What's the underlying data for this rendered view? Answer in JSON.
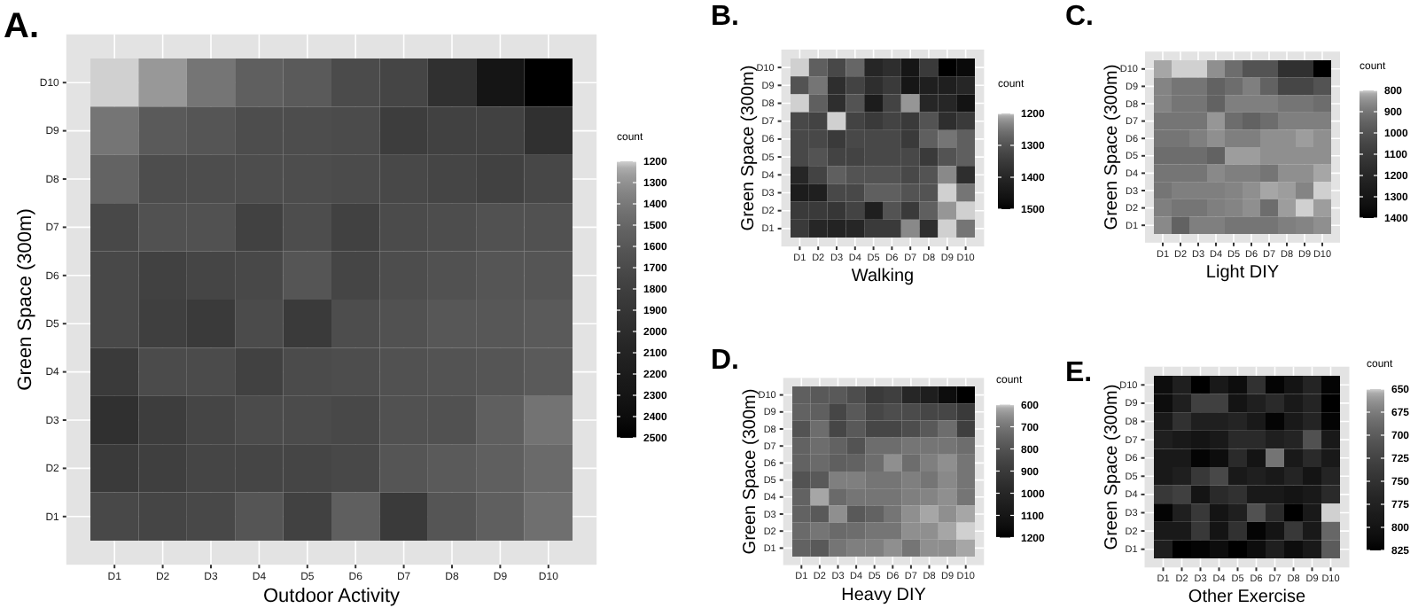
{
  "chart_data": [
    {
      "type": "heatmap",
      "title": "A.",
      "xlabel": "Outdoor Activity",
      "ylabel": "Green Space (300m)",
      "clabel": "count",
      "grid": true,
      "categories": [
        "D1",
        "D2",
        "D3",
        "D4",
        "D5",
        "D6",
        "D7",
        "D8",
        "D9",
        "D10"
      ],
      "y_categories": [
        "D10",
        "D9",
        "D8",
        "D7",
        "D6",
        "D5",
        "D4",
        "D3",
        "D2",
        "D1"
      ],
      "cells": [
        [
          1200,
          1280,
          1420,
          1550,
          1580,
          1700,
          1750,
          1950,
          2300,
          2500
        ],
        [
          1420,
          1580,
          1620,
          1680,
          1680,
          1700,
          1820,
          1780,
          1780,
          1950
        ],
        [
          1520,
          1680,
          1680,
          1680,
          1680,
          1700,
          1720,
          1750,
          1780,
          1730
        ],
        [
          1720,
          1650,
          1650,
          1780,
          1680,
          1780,
          1700,
          1680,
          1650,
          1650
        ],
        [
          1720,
          1780,
          1750,
          1720,
          1620,
          1750,
          1680,
          1650,
          1620,
          1620
        ],
        [
          1720,
          1800,
          1850,
          1700,
          1850,
          1680,
          1650,
          1600,
          1600,
          1580
        ],
        [
          1850,
          1700,
          1700,
          1780,
          1700,
          1680,
          1650,
          1630,
          1620,
          1580
        ],
        [
          1950,
          1820,
          1750,
          1700,
          1700,
          1720,
          1650,
          1650,
          1550,
          1430
        ],
        [
          1850,
          1800,
          1750,
          1750,
          1750,
          1720,
          1620,
          1580,
          1550,
          1480
        ],
        [
          1720,
          1750,
          1720,
          1620,
          1780,
          1550,
          1850,
          1620,
          1550,
          1450
        ]
      ],
      "clim": [
        1200,
        2500
      ],
      "cticks": [
        1200,
        1300,
        1400,
        1500,
        1600,
        1700,
        1800,
        1900,
        2000,
        2100,
        2200,
        2300,
        2400,
        2500
      ]
    },
    {
      "type": "heatmap",
      "title": "B.",
      "xlabel": "Walking",
      "ylabel": "Green Space (300m)",
      "clabel": "count",
      "grid": true,
      "categories": [
        "D1",
        "D2",
        "D3",
        "D4",
        "D5",
        "D6",
        "D7",
        "D8",
        "D9",
        "D10"
      ],
      "y_categories": [
        "D10",
        "D9",
        "D8",
        "D7",
        "D6",
        "D5",
        "D4",
        "D3",
        "D2",
        "D1"
      ],
      "cells": [
        [
          1200,
          1280,
          1320,
          1270,
          1400,
          1380,
          1450,
          1350,
          1500,
          1480
        ],
        [
          1300,
          1250,
          1380,
          1330,
          1380,
          1350,
          1450,
          1420,
          1420,
          1400
        ],
        [
          1200,
          1280,
          1380,
          1300,
          1430,
          1330,
          1220,
          1400,
          1400,
          1460
        ],
        [
          1320,
          1330,
          1200,
          1330,
          1350,
          1330,
          1350,
          1300,
          1380,
          1350
        ],
        [
          1320,
          1320,
          1350,
          1320,
          1320,
          1320,
          1350,
          1280,
          1250,
          1280
        ],
        [
          1320,
          1300,
          1330,
          1330,
          1320,
          1320,
          1320,
          1350,
          1300,
          1280
        ],
        [
          1400,
          1330,
          1280,
          1300,
          1300,
          1300,
          1320,
          1300,
          1230,
          1380
        ],
        [
          1430,
          1420,
          1320,
          1320,
          1280,
          1280,
          1300,
          1300,
          1200,
          1250
        ],
        [
          1350,
          1350,
          1360,
          1330,
          1420,
          1300,
          1350,
          1280,
          1220,
          1200
        ],
        [
          1350,
          1400,
          1410,
          1400,
          1350,
          1350,
          1230,
          1380,
          1200,
          1250
        ]
      ],
      "clim": [
        1200,
        1500
      ],
      "cticks": [
        1200,
        1300,
        1400,
        1500
      ]
    },
    {
      "type": "heatmap",
      "title": "C.",
      "xlabel": "Light DIY",
      "ylabel": "Green Space (300m)",
      "clabel": "count",
      "grid": true,
      "categories": [
        "D1",
        "D2",
        "D3",
        "D4",
        "D5",
        "D6",
        "D7",
        "D8",
        "D9",
        "D10"
      ],
      "y_categories": [
        "D10",
        "D9",
        "D8",
        "D7",
        "D6",
        "D5",
        "D4",
        "D3",
        "D2",
        "D1"
      ],
      "cells": [
        [
          820,
          800,
          800,
          850,
          920,
          1000,
          1000,
          1150,
          1150,
          1400
        ],
        [
          870,
          900,
          900,
          950,
          920,
          880,
          950,
          1050,
          1050,
          1000
        ],
        [
          870,
          900,
          900,
          950,
          880,
          880,
          880,
          900,
          900,
          920
        ],
        [
          900,
          900,
          900,
          840,
          920,
          950,
          920,
          880,
          880,
          880
        ],
        [
          900,
          900,
          880,
          850,
          880,
          880,
          850,
          850,
          830,
          850
        ],
        [
          920,
          920,
          920,
          950,
          830,
          830,
          850,
          850,
          850,
          850
        ],
        [
          900,
          900,
          900,
          860,
          880,
          880,
          900,
          850,
          850,
          820
        ],
        [
          900,
          880,
          880,
          880,
          870,
          850,
          820,
          830,
          870,
          800
        ],
        [
          880,
          900,
          900,
          880,
          870,
          850,
          920,
          830,
          800,
          830
        ],
        [
          860,
          950,
          880,
          880,
          900,
          900,
          900,
          880,
          870,
          850
        ]
      ],
      "clim": [
        800,
        1400
      ],
      "cticks": [
        800,
        900,
        1000,
        1100,
        1200,
        1300,
        1400
      ]
    },
    {
      "type": "heatmap",
      "title": "D.",
      "xlabel": "Heavy DIY",
      "ylabel": "Green Space (300m)",
      "clabel": "count",
      "grid": true,
      "categories": [
        "D1",
        "D2",
        "D3",
        "D4",
        "D5",
        "D6",
        "D7",
        "D8",
        "D9",
        "D10"
      ],
      "y_categories": [
        "D10",
        "D9",
        "D8",
        "D7",
        "D6",
        "D5",
        "D4",
        "D3",
        "D2",
        "D1"
      ],
      "cells": [
        [
          760,
          780,
          780,
          820,
          900,
          880,
          1000,
          1050,
          1150,
          1200
        ],
        [
          750,
          760,
          850,
          780,
          850,
          820,
          830,
          850,
          850,
          900
        ],
        [
          800,
          720,
          850,
          780,
          850,
          850,
          820,
          780,
          720,
          880
        ],
        [
          750,
          720,
          750,
          800,
          720,
          720,
          700,
          700,
          700,
          720
        ],
        [
          750,
          730,
          760,
          750,
          720,
          650,
          720,
          680,
          650,
          700
        ],
        [
          800,
          780,
          680,
          680,
          700,
          700,
          680,
          700,
          660,
          700
        ],
        [
          750,
          620,
          730,
          700,
          700,
          700,
          680,
          670,
          650,
          700
        ],
        [
          750,
          780,
          650,
          780,
          750,
          700,
          650,
          620,
          650,
          620
        ],
        [
          730,
          700,
          730,
          720,
          700,
          700,
          650,
          650,
          620,
          600
        ],
        [
          750,
          780,
          700,
          680,
          680,
          650,
          700,
          650,
          650,
          620
        ]
      ],
      "clim": [
        600,
        1200
      ],
      "cticks": [
        600,
        700,
        800,
        900,
        1000,
        1100,
        1200
      ]
    },
    {
      "type": "heatmap",
      "title": "E.",
      "xlabel": "Other Exercise",
      "ylabel": "Green Space (300m)",
      "clabel": "count",
      "grid": true,
      "categories": [
        "D1",
        "D2",
        "D3",
        "D4",
        "D5",
        "D6",
        "D7",
        "D8",
        "D9",
        "D10"
      ],
      "y_categories": [
        "D10",
        "D9",
        "D8",
        "D7",
        "D6",
        "D5",
        "D4",
        "D3",
        "D2",
        "D1"
      ],
      "cells": [
        [
          810,
          780,
          825,
          790,
          810,
          750,
          820,
          800,
          770,
          820
        ],
        [
          810,
          780,
          730,
          730,
          800,
          780,
          760,
          790,
          770,
          825
        ],
        [
          790,
          750,
          780,
          780,
          770,
          790,
          820,
          790,
          770,
          820
        ],
        [
          780,
          790,
          800,
          790,
          760,
          760,
          780,
          770,
          710,
          790
        ],
        [
          790,
          790,
          820,
          810,
          760,
          800,
          680,
          790,
          760,
          790
        ],
        [
          790,
          780,
          740,
          720,
          790,
          780,
          790,
          770,
          800,
          770
        ],
        [
          740,
          730,
          800,
          760,
          750,
          790,
          790,
          800,
          790,
          760
        ],
        [
          820,
          780,
          740,
          800,
          780,
          710,
          760,
          825,
          790,
          650
        ],
        [
          790,
          790,
          740,
          800,
          750,
          820,
          800,
          740,
          790,
          690
        ],
        [
          780,
          825,
          820,
          810,
          825,
          810,
          780,
          810,
          790,
          700
        ]
      ],
      "clim": [
        650,
        825
      ],
      "cticks": [
        650,
        675,
        700,
        725,
        750,
        775,
        800,
        825
      ]
    }
  ]
}
